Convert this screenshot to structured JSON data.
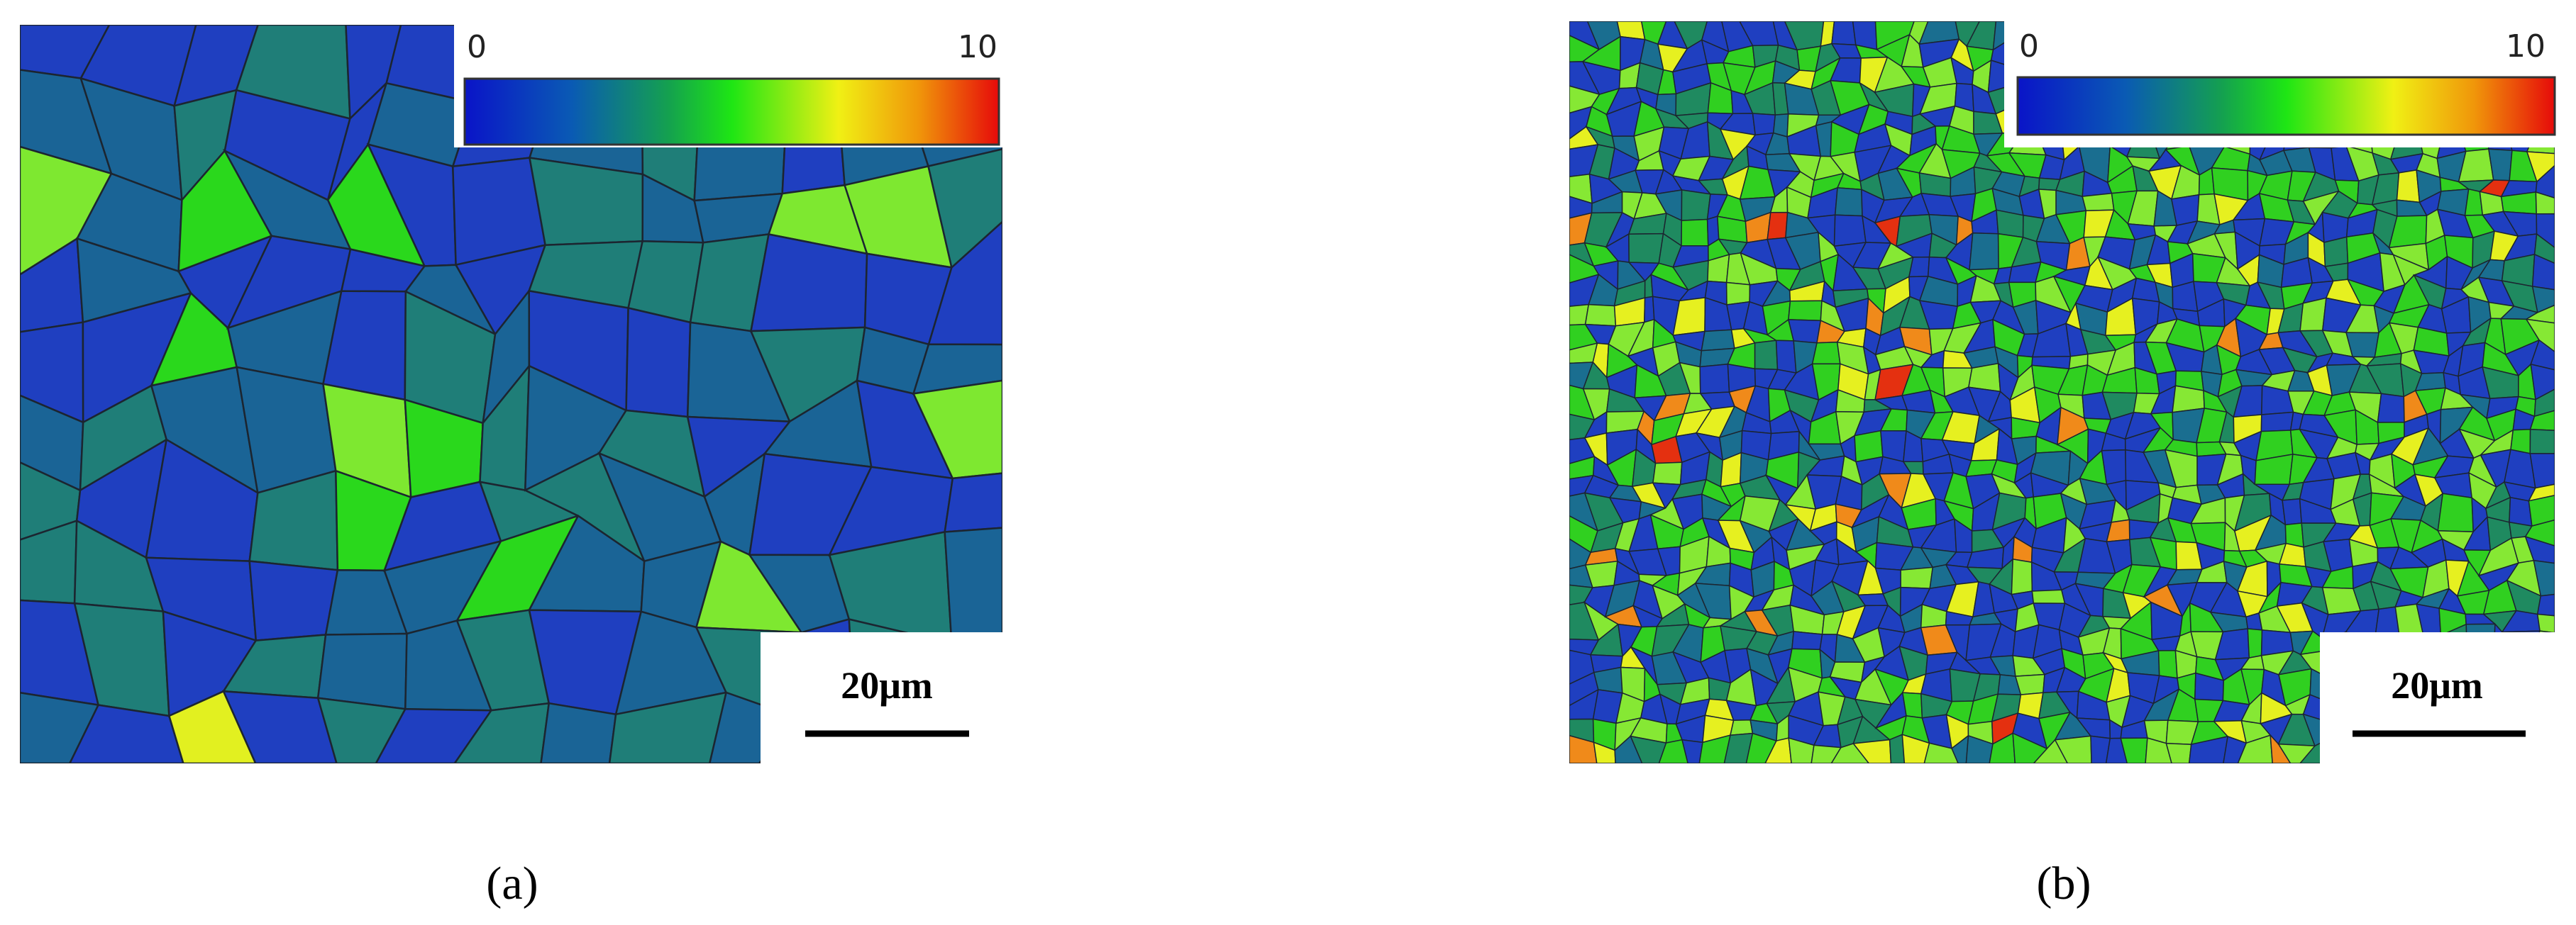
{
  "panels": [
    {
      "label": "(a)",
      "colorbar_ticks": [
        0,
        10
      ],
      "scale_bar": "20μm"
    },
    {
      "label": "(b)",
      "colorbar_ticks": [
        0,
        10
      ],
      "scale_bar": "20μm"
    }
  ]
}
